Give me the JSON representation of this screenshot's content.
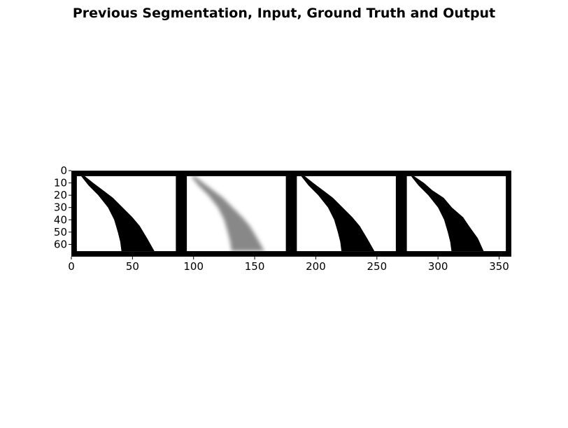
{
  "chart_data": {
    "type": "image",
    "title": "Previous Segmentation, Input, Ground Truth and Output",
    "xlim": [
      0,
      360
    ],
    "ylim": [
      70,
      0
    ],
    "x_ticks": [
      0,
      50,
      100,
      150,
      200,
      250,
      300,
      350
    ],
    "y_ticks": [
      0,
      10,
      20,
      30,
      40,
      50,
      60
    ],
    "grid": false,
    "panels": [
      {
        "name": "previous segmentation",
        "x_range": [
          0,
          90
        ],
        "rendering": "binary mask"
      },
      {
        "name": "input",
        "x_range": [
          90,
          180
        ],
        "rendering": "grayscale"
      },
      {
        "name": "ground truth",
        "x_range": [
          180,
          270
        ],
        "rendering": "binary mask"
      },
      {
        "name": "output",
        "x_range": [
          270,
          360
        ],
        "rendering": "binary mask"
      }
    ],
    "colors": {
      "mask": "#000000",
      "background": "#ffffff",
      "input_gray": "#888888"
    }
  }
}
